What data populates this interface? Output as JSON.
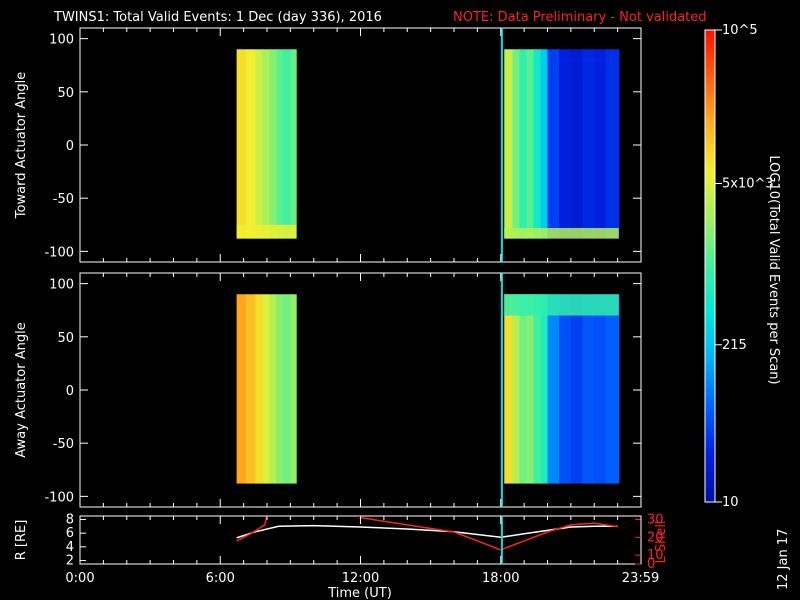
{
  "title": {
    "main": "TWINS1: Total Valid Events:  1 Dec (day 336), 2016",
    "note": "NOTE: Data Preliminary - Not validated"
  },
  "colors": {
    "background": "#000000",
    "text": "#ffffff",
    "note": "#ff2020",
    "marker": "#00e0e0",
    "lshell": "#ff2020",
    "radius": "#ffffff"
  },
  "colorbar": {
    "label": "LOG10(Total Valid Events per Scan)",
    "ticks": [
      {
        "label": "10",
        "value": 10
      },
      {
        "label": "215",
        "value": 215
      },
      {
        "label": "5x10^3",
        "value": 5000
      },
      {
        "label": "10^5",
        "value": 100000
      }
    ],
    "scale": "log",
    "range": [
      10,
      100000
    ],
    "colormap": [
      "#0010a0",
      "#0020e0",
      "#0060ff",
      "#00b0ff",
      "#00e8d8",
      "#40f0a0",
      "#a0f060",
      "#f0f030",
      "#ffb020",
      "#ff6010",
      "#ff1000"
    ]
  },
  "side_date": "12 Jan 17",
  "chart_data": [
    {
      "type": "heatmap",
      "name": "toward-panel",
      "ylabel": "Toward Actuator Angle",
      "xlim": [
        0,
        24
      ],
      "ylim": [
        -110,
        110
      ],
      "yticks": [
        100,
        50,
        0,
        -50,
        -100
      ],
      "marker_x": 18.05,
      "blocks": [
        {
          "x_start": 6.7,
          "x_end": 9.25,
          "y_min": -88,
          "y_max": 90,
          "columns": [
            {
              "x_end": 7.1,
              "log_value": 3.9
            },
            {
              "x_end": 7.5,
              "log_value": 3.8
            },
            {
              "x_end": 7.8,
              "log_value": 3.6
            },
            {
              "x_end": 8.1,
              "log_value": 3.45
            },
            {
              "x_end": 8.4,
              "log_value": 3.3
            },
            {
              "x_end": 8.7,
              "log_value": 3.1
            },
            {
              "x_end": 9.0,
              "log_value": 3.0
            },
            {
              "x_end": 9.25,
              "log_value": 3.15
            }
          ],
          "bottom_band": {
            "y_min": -88,
            "y_max": -75,
            "log_value": 3.8
          }
        },
        {
          "x_start": 18.15,
          "x_end": 23.05,
          "y_min": -88,
          "y_max": 90,
          "columns": [
            {
              "x_end": 18.5,
              "log_value": 3.6
            },
            {
              "x_end": 18.8,
              "log_value": 3.2
            },
            {
              "x_end": 19.1,
              "log_value": 2.9
            },
            {
              "x_end": 19.4,
              "log_value": 3.1
            },
            {
              "x_end": 19.7,
              "log_value": 2.7
            },
            {
              "x_end": 20.0,
              "log_value": 2.4
            },
            {
              "x_end": 20.5,
              "log_value": 1.6
            },
            {
              "x_end": 21.0,
              "log_value": 1.4
            },
            {
              "x_end": 21.5,
              "log_value": 1.3
            },
            {
              "x_end": 22.0,
              "log_value": 1.45
            },
            {
              "x_end": 22.5,
              "log_value": 1.4
            },
            {
              "x_end": 23.05,
              "log_value": 1.5
            }
          ],
          "bottom_band": {
            "y_min": -88,
            "y_max": -78,
            "log_value": 3.5
          }
        }
      ]
    },
    {
      "type": "heatmap",
      "name": "away-panel",
      "ylabel": "Away Actuator Angle",
      "xlim": [
        0,
        24
      ],
      "ylim": [
        -110,
        110
      ],
      "yticks": [
        100,
        50,
        0,
        -50,
        -100
      ],
      "marker_x": 18.05,
      "blocks": [
        {
          "x_start": 6.7,
          "x_end": 9.25,
          "y_min": -88,
          "y_max": 90,
          "columns": [
            {
              "x_end": 7.1,
              "log_value": 4.25
            },
            {
              "x_end": 7.5,
              "log_value": 4.1
            },
            {
              "x_end": 7.8,
              "log_value": 3.9
            },
            {
              "x_end": 8.1,
              "log_value": 3.7
            },
            {
              "x_end": 8.4,
              "log_value": 3.5
            },
            {
              "x_end": 8.7,
              "log_value": 3.3
            },
            {
              "x_end": 9.0,
              "log_value": 3.2
            },
            {
              "x_end": 9.25,
              "log_value": 3.35
            }
          ]
        },
        {
          "x_start": 18.15,
          "x_end": 23.05,
          "y_min": -88,
          "y_max": 90,
          "columns": [
            {
              "x_end": 18.5,
              "log_value": 3.9
            },
            {
              "x_end": 18.8,
              "log_value": 3.5
            },
            {
              "x_end": 19.1,
              "log_value": 3.2
            },
            {
              "x_end": 19.4,
              "log_value": 3.3
            },
            {
              "x_end": 19.7,
              "log_value": 3.0
            },
            {
              "x_end": 20.0,
              "log_value": 2.8
            },
            {
              "x_end": 20.5,
              "log_value": 2.0
            },
            {
              "x_end": 21.0,
              "log_value": 1.7
            },
            {
              "x_end": 21.5,
              "log_value": 1.6
            },
            {
              "x_end": 22.0,
              "log_value": 1.75
            },
            {
              "x_end": 22.5,
              "log_value": 1.7
            },
            {
              "x_end": 23.05,
              "log_value": 1.8
            }
          ],
          "top_band": {
            "y_min": 70,
            "y_max": 90,
            "log_value": 2.9
          }
        }
      ]
    },
    {
      "type": "line",
      "name": "orbit-panel",
      "xlabel": "Time (UT)",
      "xlim": [
        0,
        24
      ],
      "xticks": [
        {
          "value": 0,
          "label": "0:00"
        },
        {
          "value": 6,
          "label": "6:00"
        },
        {
          "value": 12,
          "label": "12:00"
        },
        {
          "value": 18,
          "label": "18:00"
        },
        {
          "value": 23.98,
          "label": "23:59"
        }
      ],
      "left_axis": {
        "label": "R [RE]",
        "ylim": [
          1.5,
          8.5
        ],
        "ticks": [
          8,
          6,
          4,
          2
        ]
      },
      "right_axis": {
        "label": "L Shell",
        "ylim": [
          5,
          32
        ],
        "ticks": [
          30,
          20,
          10,
          0
        ],
        "tick_labels": [
          "30",
          "20",
          "10",
          "0"
        ]
      },
      "marker_x": 18.05,
      "series": [
        {
          "axis": "left",
          "x": [
            6.7,
            7.5,
            8.5,
            10,
            12,
            14,
            16,
            18.0,
            19,
            20,
            21,
            22,
            23.0
          ],
          "y": [
            5.3,
            6.2,
            7.0,
            7.1,
            6.9,
            6.6,
            6.2,
            5.4,
            5.9,
            6.4,
            6.9,
            7.0,
            7.0
          ]
        },
        {
          "axis": "right",
          "x": [
            6.7,
            7.3,
            7.9,
            8.0
          ],
          "y": [
            18,
            22,
            27,
            32
          ]
        },
        {
          "axis": "right",
          "x": [
            11.9,
            12.05,
            14,
            16,
            18.0,
            19,
            20,
            21,
            22,
            23.0
          ],
          "y": [
            32,
            31,
            27,
            23,
            13,
            18,
            23,
            27,
            28,
            26
          ]
        }
      ]
    }
  ]
}
